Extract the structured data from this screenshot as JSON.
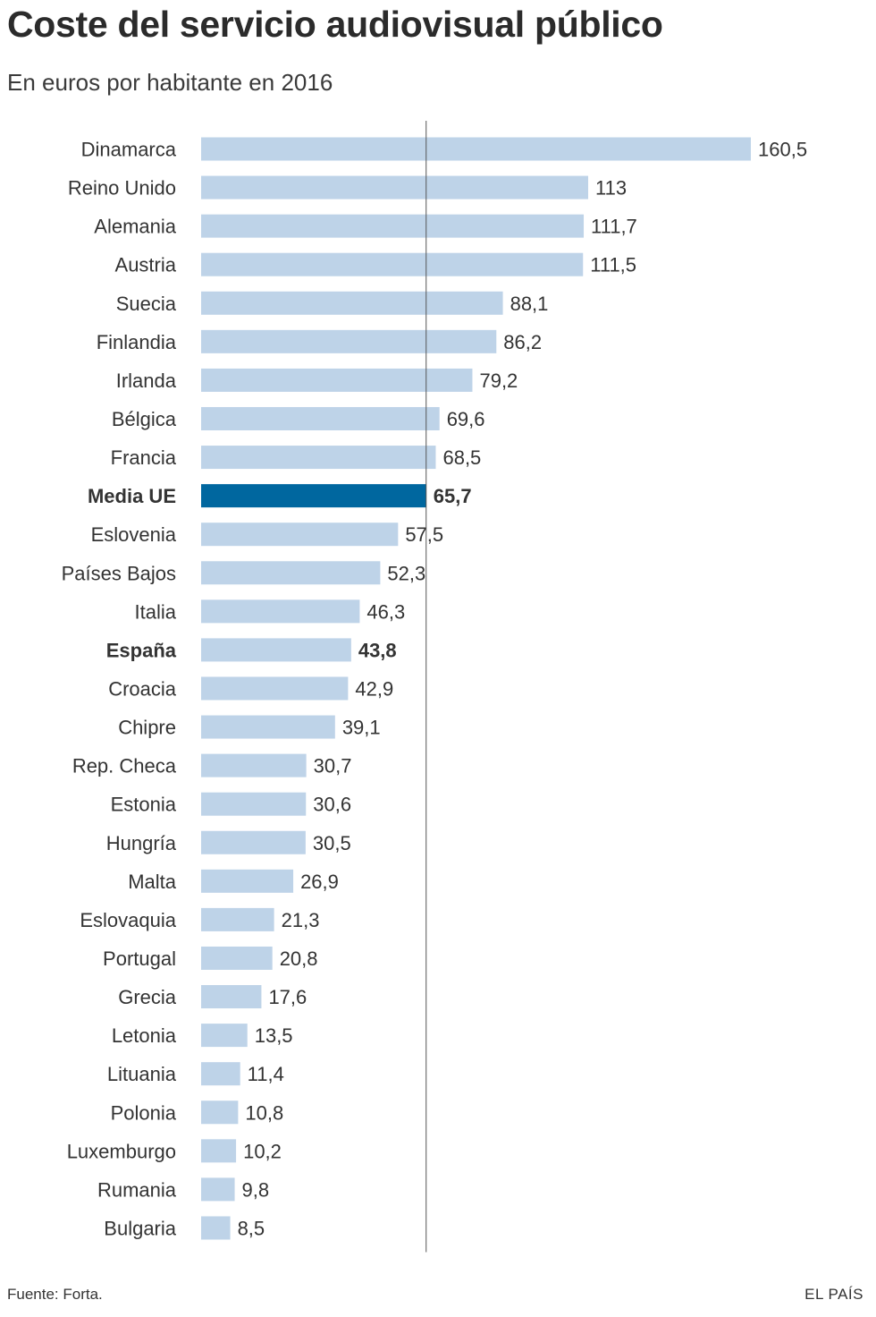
{
  "chart_data": {
    "type": "bar",
    "orientation": "horizontal",
    "title": "Coste del servicio audiovisual público",
    "subtitle": "En euros por habitante en 2016",
    "categories": [
      "Dinamarca",
      "Reino Unido",
      "Alemania",
      "Austria",
      "Suecia",
      "Finlandia",
      "Irlanda",
      "Bélgica",
      "Francia",
      "Media UE",
      "Eslovenia",
      "Países Bajos",
      "Italia",
      "España",
      "Croacia",
      "Chipre",
      "Rep. Checa",
      "Estonia",
      "Hungría",
      "Malta",
      "Eslovaquia",
      "Portugal",
      "Grecia",
      "Letonia",
      "Lituania",
      "Polonia",
      "Luxemburgo",
      "Rumania",
      "Bulgaria"
    ],
    "values": [
      160.5,
      113,
      111.7,
      111.5,
      88.1,
      86.2,
      79.2,
      69.6,
      68.5,
      65.7,
      57.5,
      52.3,
      46.3,
      43.8,
      42.9,
      39.1,
      30.7,
      30.6,
      30.5,
      26.9,
      21.3,
      20.8,
      17.6,
      13.5,
      11.4,
      10.8,
      10.2,
      9.8,
      8.5
    ],
    "value_labels": [
      "160,5",
      "113",
      "111,7",
      "111,5",
      "88,1",
      "86,2",
      "79,2",
      "69,6",
      "68,5",
      "65,7",
      "57,5",
      "52,3",
      "46,3",
      "43,8",
      "42,9",
      "39,1",
      "30,7",
      "30,6",
      "30,5",
      "26,9",
      "21,3",
      "20,8",
      "17,6",
      "13,5",
      "11,4",
      "10,8",
      "10,2",
      "9,8",
      "8,5"
    ],
    "highlight": [
      "Media UE",
      "España"
    ],
    "reference_line": 65.7,
    "xlim": [
      0,
      160.5
    ],
    "bar_color": "#bed3e8",
    "highlight_color": "#00679f"
  },
  "footer": {
    "source": "Fuente: Forta.",
    "brand": "EL PAÍS"
  }
}
